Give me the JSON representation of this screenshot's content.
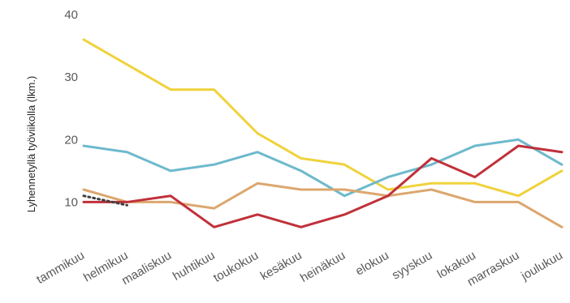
{
  "chart_data": {
    "type": "line",
    "ylabel": "Lyhennetyllä työviikolla (lkm.)",
    "ylim": [
      5,
      40
    ],
    "yticks": [
      10,
      20,
      30,
      40
    ],
    "grid": false,
    "categories": [
      "tammikuu",
      "helmikuu",
      "maaliskuu",
      "huhtikuu",
      "toukokuu",
      "kesäkuu",
      "heinäkuu",
      "elokuu",
      "syyskuu",
      "lokakuu",
      "marraskuu",
      "joulukuu"
    ],
    "series": [
      {
        "color": "#f0d23c",
        "values": [
          36,
          32,
          28,
          28,
          21,
          17,
          16,
          12,
          13,
          13,
          11,
          15
        ]
      },
      {
        "color": "#6db9cc",
        "values": [
          19,
          18,
          15,
          16,
          18,
          15,
          11,
          14,
          16,
          19,
          20,
          16
        ]
      },
      {
        "color": "#dca76e",
        "values": [
          12,
          10,
          10,
          9,
          13,
          12,
          12,
          11,
          12,
          10,
          10,
          6
        ]
      },
      {
        "color": "#c0313a",
        "values": [
          10,
          10,
          11,
          6,
          8,
          6,
          8,
          11,
          17,
          14,
          19,
          18
        ]
      },
      {
        "color": "#404040",
        "dashed": true,
        "values": [
          11,
          9.5,
          null,
          null,
          null,
          null,
          null,
          null,
          null,
          null,
          null,
          null
        ]
      }
    ]
  }
}
